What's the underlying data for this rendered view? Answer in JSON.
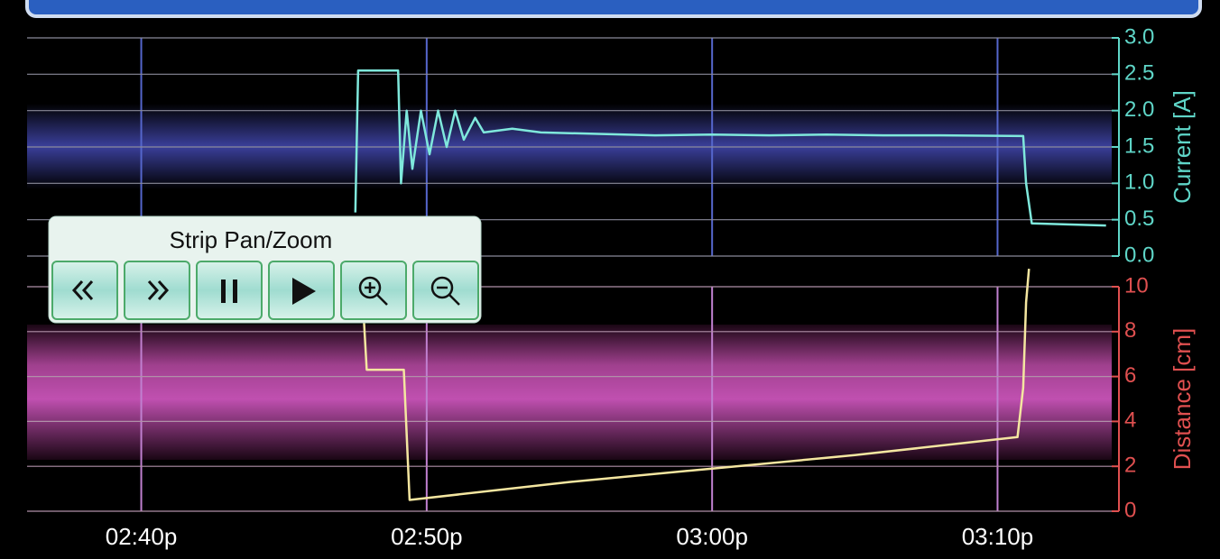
{
  "panel": {
    "title": "Strip Pan/Zoom"
  },
  "chart_data": [
    {
      "type": "line",
      "ylabel": "Current [A]",
      "color": "#7fe8dc",
      "axis_color": "#5fd6c8",
      "x": [
        887.5,
        887.6,
        889.0,
        889.1,
        889.3,
        889.5,
        889.8,
        890.1,
        890.4,
        890.7,
        891.0,
        891.3,
        891.7,
        892.0,
        893.0,
        894.0,
        896.0,
        898.0,
        900.0,
        902.0,
        904.0,
        906.0,
        908.0,
        910.9,
        911.0,
        911.2,
        913.8
      ],
      "values": [
        0.6,
        2.55,
        2.55,
        1.0,
        2.0,
        1.2,
        2.0,
        1.4,
        2.0,
        1.5,
        2.0,
        1.6,
        1.9,
        1.7,
        1.75,
        1.7,
        1.68,
        1.66,
        1.67,
        1.66,
        1.67,
        1.66,
        1.66,
        1.65,
        1.0,
        0.45,
        0.42
      ],
      "ylim": [
        0,
        3
      ],
      "yticks": [
        {
          "value": 0,
          "label": "0.0"
        },
        {
          "value": 0.5,
          "label": "0.5"
        },
        {
          "value": 1,
          "label": "1.0"
        },
        {
          "value": 1.5,
          "label": "1.5"
        },
        {
          "value": 2,
          "label": "2.0"
        },
        {
          "value": 2.5,
          "label": "2.5"
        },
        {
          "value": 3,
          "label": "3.0"
        }
      ]
    },
    {
      "type": "line",
      "ylabel": "Distance [cm]",
      "color": "#f4e6a0",
      "axis_color": "#e05050",
      "x": [
        887.8,
        887.9,
        889.2,
        889.4,
        895.0,
        900.0,
        905.0,
        910.7,
        910.9,
        911.0,
        911.1
      ],
      "values": [
        8.5,
        6.3,
        6.3,
        0.5,
        1.3,
        1.9,
        2.5,
        3.3,
        5.5,
        9.3,
        10.8
      ],
      "ylim": [
        0,
        10
      ],
      "yticks": [
        0,
        2,
        4,
        6,
        8,
        10
      ],
      "xlim": [
        876,
        914
      ],
      "xticks": [
        {
          "value": 880,
          "label": "02:40p"
        },
        {
          "value": 890,
          "label": "02:50p"
        },
        {
          "value": 900,
          "label": "03:00p"
        },
        {
          "value": 910,
          "label": "03:10p"
        }
      ]
    }
  ]
}
